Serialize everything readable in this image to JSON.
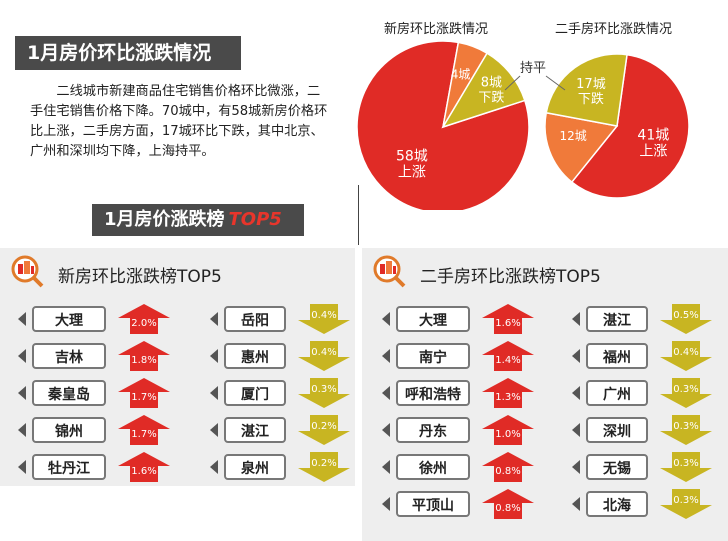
{
  "section1": {
    "title": "1月房价环比涨跌情况",
    "text": "二线城市新建商品住宅销售价格环比微涨，二手住宅销售价格下降。70城中，有58城新房价格环比上涨，二手房方面，17城环比下跌，其中北京、广州和深圳均下降，上海持平。"
  },
  "section2": {
    "title_main": "1月房价涨跌榜",
    "title_tag": "TOP5"
  },
  "colors": {
    "up": "#e02b26",
    "flat": "#f07a3a",
    "down": "#c8b522",
    "banner": "#4a4a4a"
  },
  "chart_data": [
    {
      "type": "pie",
      "title": "新房环比涨跌情况",
      "slices": [
        {
          "label_line1": "58城",
          "label_line2": "上涨",
          "value": 58,
          "color": "#e02b26"
        },
        {
          "label_line1": "4城",
          "label_line2": "",
          "value": 4,
          "color": "#f07a3a"
        },
        {
          "label_line1": "8城",
          "label_line2": "下跌",
          "value": 8,
          "color": "#c8b522"
        }
      ],
      "annotation": "持平"
    },
    {
      "type": "pie",
      "title": "二手房环比涨跌情况",
      "slices": [
        {
          "label_line1": "41城",
          "label_line2": "上涨",
          "value": 41,
          "color": "#e02b26"
        },
        {
          "label_line1": "12城",
          "label_line2": "",
          "value": 12,
          "color": "#f07a3a"
        },
        {
          "label_line1": "17城",
          "label_line2": "下跌",
          "value": 17,
          "color": "#c8b522"
        }
      ]
    },
    {
      "type": "bar",
      "title": "新房环比涨跌榜TOP5",
      "rise": {
        "categories": [
          "大理",
          "吉林",
          "秦皇岛",
          "锦州",
          "牡丹江"
        ],
        "values": [
          "2.0%",
          "1.8%",
          "1.7%",
          "1.7%",
          "1.6%"
        ]
      },
      "fall": {
        "categories": [
          "岳阳",
          "惠州",
          "厦门",
          "湛江",
          "泉州"
        ],
        "values": [
          "0.4%",
          "0.4%",
          "0.3%",
          "0.2%",
          "0.2%"
        ]
      }
    },
    {
      "type": "bar",
      "title": "二手房环比涨跌榜TOP5",
      "rise": {
        "categories": [
          "大理",
          "南宁",
          "呼和浩特",
          "丹东",
          "徐州",
          "平顶山"
        ],
        "values": [
          "1.6%",
          "1.4%",
          "1.3%",
          "1.0%",
          "0.8%",
          "0.8%"
        ]
      },
      "fall": {
        "categories": [
          "湛江",
          "福州",
          "广州",
          "深圳",
          "无锡",
          "北海"
        ],
        "values": [
          "0.5%",
          "0.4%",
          "0.3%",
          "0.3%",
          "0.3%",
          "0.3%"
        ]
      }
    }
  ]
}
